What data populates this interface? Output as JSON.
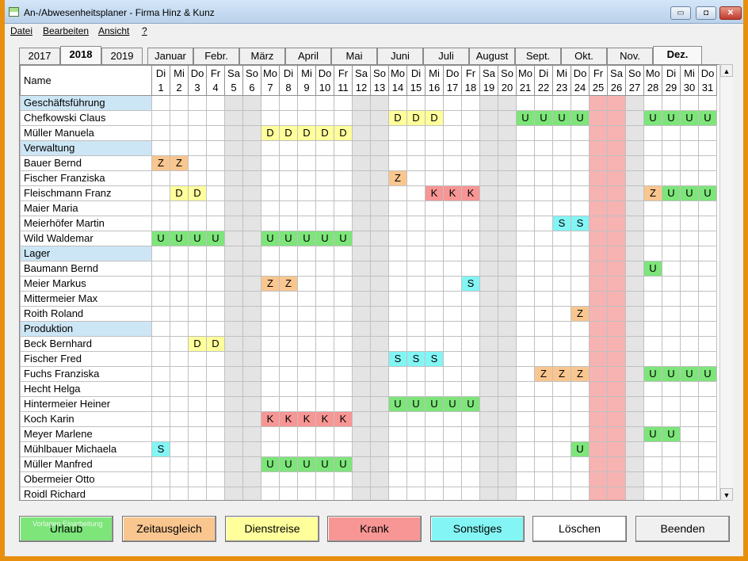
{
  "window": {
    "title": "An-/Abwesenheitsplaner - Firma Hinz & Kunz",
    "min_glyph": "▭",
    "max_glyph": "◘",
    "close_glyph": "✕"
  },
  "menu": [
    "Datei",
    "Bearbeiten",
    "Ansicht",
    "?"
  ],
  "year_tabs": [
    "2017",
    "2018",
    "2019"
  ],
  "active_year": "2018",
  "month_tabs": [
    "Januar",
    "Febr.",
    "März",
    "April",
    "Mai",
    "Juni",
    "Juli",
    "August",
    "Sept.",
    "Okt.",
    "Nov.",
    "Dez."
  ],
  "active_month": "Dez.",
  "grid": {
    "name_header": "Name",
    "days": [
      {
        "wd": "Di",
        "d": "1"
      },
      {
        "wd": "Mi",
        "d": "2"
      },
      {
        "wd": "Do",
        "d": "3"
      },
      {
        "wd": "Fr",
        "d": "4"
      },
      {
        "wd": "Sa",
        "d": "5"
      },
      {
        "wd": "So",
        "d": "6"
      },
      {
        "wd": "Mo",
        "d": "7"
      },
      {
        "wd": "Di",
        "d": "8"
      },
      {
        "wd": "Mi",
        "d": "9"
      },
      {
        "wd": "Do",
        "d": "10"
      },
      {
        "wd": "Fr",
        "d": "11"
      },
      {
        "wd": "Sa",
        "d": "12"
      },
      {
        "wd": "So",
        "d": "13"
      },
      {
        "wd": "Mo",
        "d": "14"
      },
      {
        "wd": "Di",
        "d": "15"
      },
      {
        "wd": "Mi",
        "d": "16"
      },
      {
        "wd": "Do",
        "d": "17"
      },
      {
        "wd": "Fr",
        "d": "18"
      },
      {
        "wd": "Sa",
        "d": "19"
      },
      {
        "wd": "So",
        "d": "20"
      },
      {
        "wd": "Mo",
        "d": "21"
      },
      {
        "wd": "Di",
        "d": "22"
      },
      {
        "wd": "Mi",
        "d": "23"
      },
      {
        "wd": "Do",
        "d": "24"
      },
      {
        "wd": "Fr",
        "d": "25"
      },
      {
        "wd": "Sa",
        "d": "26"
      },
      {
        "wd": "So",
        "d": "27"
      },
      {
        "wd": "Mo",
        "d": "28"
      },
      {
        "wd": "Di",
        "d": "29"
      },
      {
        "wd": "Mi",
        "d": "30"
      },
      {
        "wd": "Do",
        "d": "31"
      }
    ],
    "weekend_days": [
      5,
      6,
      12,
      13,
      19,
      20,
      26,
      27
    ],
    "holiday_days": [
      25,
      26
    ],
    "rows": [
      {
        "name": "Geschäftsführung",
        "section": true
      },
      {
        "name": "Chefkowski Claus",
        "entries": {
          "14": "D",
          "15": "D",
          "16": "D",
          "21": "U",
          "22": "U",
          "23": "U",
          "24": "U",
          "28": "U",
          "29": "U",
          "30": "U",
          "31": "U"
        }
      },
      {
        "name": "Müller Manuela",
        "entries": {
          "7": "D",
          "8": "D",
          "9": "D",
          "10": "D",
          "11": "D"
        }
      },
      {
        "name": "Verwaltung",
        "section": true
      },
      {
        "name": "Bauer Bernd",
        "entries": {
          "1": "Z",
          "2": "Z"
        }
      },
      {
        "name": "Fischer Franziska",
        "entries": {
          "14": "Z"
        }
      },
      {
        "name": "Fleischmann Franz",
        "entries": {
          "2": "D",
          "3": "D",
          "16": "K",
          "17": "K",
          "18": "K",
          "28": "Z",
          "29": "U",
          "30": "U",
          "31": "U"
        }
      },
      {
        "name": "Maier Maria",
        "entries": {}
      },
      {
        "name": "Meierhöfer Martin",
        "entries": {
          "23": "S",
          "24": "S"
        }
      },
      {
        "name": "Wild Waldemar",
        "entries": {
          "1": "U",
          "2": "U",
          "3": "U",
          "4": "U",
          "7": "U",
          "8": "U",
          "9": "U",
          "10": "U",
          "11": "U"
        }
      },
      {
        "name": "Lager",
        "section": true
      },
      {
        "name": "Baumann Bernd",
        "entries": {
          "28": "U"
        }
      },
      {
        "name": "Meier Markus",
        "entries": {
          "7": "Z",
          "8": "Z",
          "18": "S"
        }
      },
      {
        "name": "Mittermeier Max",
        "entries": {}
      },
      {
        "name": "Roith Roland",
        "entries": {
          "24": "Z"
        }
      },
      {
        "name": "Produktion",
        "section": true
      },
      {
        "name": "Beck Bernhard",
        "entries": {
          "3": "D",
          "4": "D"
        }
      },
      {
        "name": "Fischer Fred",
        "entries": {
          "14": "S",
          "15": "S",
          "16": "S"
        }
      },
      {
        "name": "Fuchs Franziska",
        "entries": {
          "22": "Z",
          "23": "Z",
          "24": "Z",
          "28": "U",
          "29": "U",
          "30": "U",
          "31": "U"
        }
      },
      {
        "name": "Hecht Helga",
        "entries": {}
      },
      {
        "name": "Hintermeier Heiner",
        "entries": {
          "14": "U",
          "15": "U",
          "16": "U",
          "17": "U",
          "18": "U"
        }
      },
      {
        "name": "Koch Karin",
        "entries": {
          "7": "K",
          "8": "K",
          "9": "K",
          "10": "K",
          "11": "K"
        }
      },
      {
        "name": "Meyer Marlene",
        "entries": {
          "28": "U",
          "29": "U"
        }
      },
      {
        "name": "Mühlbauer Michaela",
        "entries": {
          "1": "S",
          "24": "U"
        }
      },
      {
        "name": "Müller Manfred",
        "entries": {
          "7": "U",
          "8": "U",
          "9": "U",
          "10": "U",
          "11": "U"
        }
      },
      {
        "name": "Obermeier Otto",
        "entries": {}
      },
      {
        "name": "Roidl Richard",
        "entries": {}
      }
    ]
  },
  "scroll": {
    "up_glyph": "▲",
    "down_glyph": "▼"
  },
  "buttons": [
    {
      "key": "urlaub",
      "label": "Urlaub",
      "small_text": "Vorlagen Einarbeitung",
      "color": "#7de57a"
    },
    {
      "key": "zeitausgleich",
      "label": "Zeitausgleich",
      "color": "#f9c68f"
    },
    {
      "key": "dienstreise",
      "label": "Dienstreise",
      "color": "#ffff9c"
    },
    {
      "key": "krank",
      "label": "Krank",
      "color": "#f79694"
    },
    {
      "key": "sonstiges",
      "label": "Sonstiges",
      "color": "#83f5f5"
    },
    {
      "key": "loeschen",
      "label": "Löschen",
      "color": "#ffffff"
    },
    {
      "key": "beenden",
      "label": "Beenden",
      "color": "#f0f0f0"
    }
  ]
}
